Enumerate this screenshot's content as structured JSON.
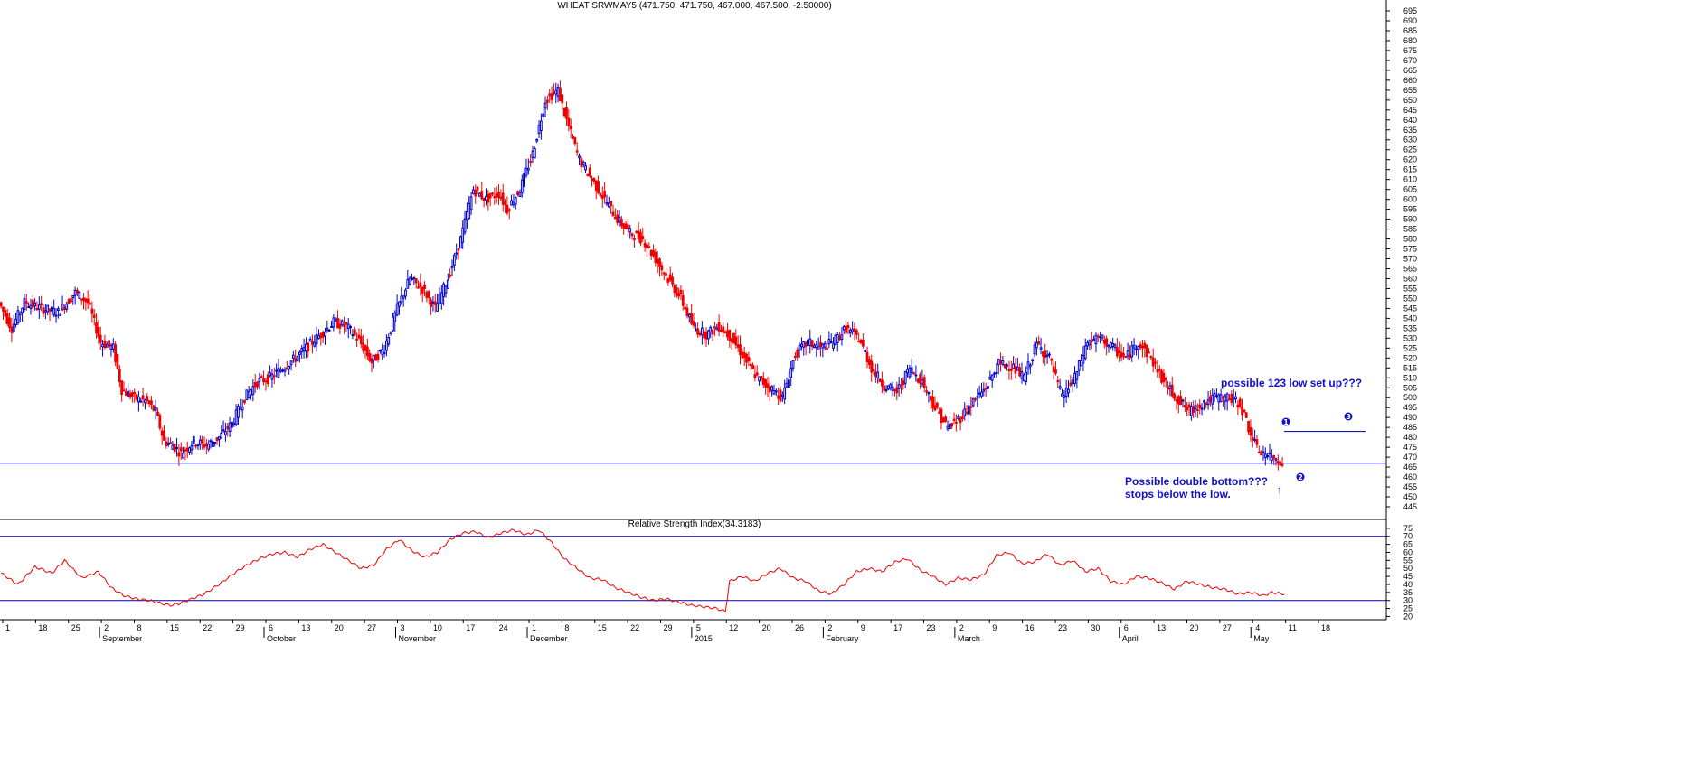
{
  "price_title": "WHEAT SRWMAY5 (471.750, 471.750, 467.000, 467.500, -2.50000)",
  "rsi_title": "Relative Strength Index(34.3183)",
  "annotations": {
    "setup": "possible 123 low set up???",
    "double_bottom": "Possible double bottom???",
    "stops": "stops below the low.",
    "pt1": "1",
    "pt2": "2",
    "pt3": "3",
    "arrow": "↑"
  },
  "colors": {
    "up_candle": "#0000cc",
    "down_candle": "#ee0000",
    "rsi_line": "#ee0000",
    "levels": "#0000aa",
    "annotation": "#1010cc"
  },
  "chart_data": [
    {
      "type": "candlestick",
      "title": "WHEAT SRWMAY5 (471.750, 471.750, 467.000, 467.500, -2.50000)",
      "ylim": [
        440,
        695
      ],
      "y_ticks": [
        445,
        450,
        455,
        460,
        465,
        470,
        475,
        480,
        485,
        490,
        495,
        500,
        505,
        510,
        515,
        520,
        525,
        530,
        535,
        540,
        545,
        550,
        555,
        560,
        565,
        570,
        575,
        580,
        585,
        590,
        595,
        600,
        605,
        610,
        615,
        620,
        625,
        630,
        635,
        640,
        645,
        650,
        655,
        660,
        665,
        670,
        675,
        680,
        685,
        690,
        695
      ],
      "support_line": 467,
      "resistance_line_123": 483,
      "series": [
        {
          "name": "price",
          "kp": [
            [
              0,
              548
            ],
            [
              6,
              535
            ],
            [
              12,
              548
            ],
            [
              20,
              545
            ],
            [
              28,
              543
            ],
            [
              36,
              553
            ],
            [
              42,
              548
            ],
            [
              48,
              528
            ],
            [
              54,
              525
            ],
            [
              58,
              504
            ],
            [
              64,
              500
            ],
            [
              70,
              498
            ],
            [
              74,
              493
            ],
            [
              78,
              478
            ],
            [
              82,
              476
            ],
            [
              86,
              472
            ],
            [
              92,
              478
            ],
            [
              98,
              476
            ],
            [
              104,
              480
            ],
            [
              110,
              487
            ],
            [
              116,
              500
            ],
            [
              122,
              508
            ],
            [
              128,
              510
            ],
            [
              134,
              515
            ],
            [
              140,
              520
            ],
            [
              146,
              526
            ],
            [
              152,
              532
            ],
            [
              158,
              538
            ],
            [
              164,
              536
            ],
            [
              170,
              529
            ],
            [
              176,
              518
            ],
            [
              182,
              525
            ],
            [
              188,
              545
            ],
            [
              194,
              560
            ],
            [
              200,
              555
            ],
            [
              206,
              545
            ],
            [
              212,
              560
            ],
            [
              218,
              580
            ],
            [
              224,
              605
            ],
            [
              230,
              600
            ],
            [
              236,
              603
            ],
            [
              240,
              595
            ],
            [
              246,
              605
            ],
            [
              252,
              623
            ],
            [
              258,
              650
            ],
            [
              264,
              655
            ],
            [
              268,
              640
            ],
            [
              274,
              620
            ],
            [
              280,
              610
            ],
            [
              286,
              600
            ],
            [
              292,
              590
            ],
            [
              298,
              583
            ],
            [
              304,
              580
            ],
            [
              310,
              570
            ],
            [
              316,
              560
            ],
            [
              322,
              550
            ],
            [
              328,
              535
            ],
            [
              334,
              532
            ],
            [
              340,
              536
            ],
            [
              346,
              530
            ],
            [
              352,
              520
            ],
            [
              358,
              510
            ],
            [
              364,
              505
            ],
            [
              370,
              500
            ],
            [
              376,
              522
            ],
            [
              382,
              528
            ],
            [
              388,
              525
            ],
            [
              394,
              528
            ],
            [
              400,
              535
            ],
            [
              406,
              530
            ],
            [
              412,
              515
            ],
            [
              418,
              506
            ],
            [
              424,
              503
            ],
            [
              430,
              515
            ],
            [
              436,
              508
            ],
            [
              442,
              495
            ],
            [
              448,
              485
            ],
            [
              454,
              490
            ],
            [
              460,
              498
            ],
            [
              466,
              505
            ],
            [
              472,
              517
            ],
            [
              478,
              516
            ],
            [
              484,
              510
            ],
            [
              490,
              527
            ],
            [
              496,
              520
            ],
            [
              502,
              500
            ],
            [
              508,
              510
            ],
            [
              514,
              528
            ],
            [
              520,
              530
            ],
            [
              526,
              525
            ],
            [
              532,
              520
            ],
            [
              538,
              528
            ],
            [
              544,
              520
            ],
            [
              550,
              508
            ],
            [
              556,
              500
            ],
            [
              562,
              493
            ],
            [
              568,
              497
            ],
            [
              574,
              500
            ],
            [
              580,
              500
            ],
            [
              586,
              497
            ],
            [
              590,
              485
            ],
            [
              594,
              474
            ],
            [
              600,
              470
            ],
            [
              606,
              468
            ]
          ]
        }
      ]
    },
    {
      "type": "line",
      "title": "Relative Strength Index(34.3183)",
      "ylim": [
        18,
        80
      ],
      "y_ticks": [
        20,
        25,
        30,
        35,
        40,
        45,
        50,
        55,
        60,
        65,
        70,
        75
      ],
      "levels": [
        70,
        30
      ],
      "series": [
        {
          "name": "RSI",
          "kp": [
            [
              0,
              47
            ],
            [
              8,
              40
            ],
            [
              16,
              51
            ],
            [
              24,
              47
            ],
            [
              30,
              55
            ],
            [
              38,
              44
            ],
            [
              46,
              48
            ],
            [
              52,
              38
            ],
            [
              58,
              33
            ],
            [
              64,
              31
            ],
            [
              70,
              30
            ],
            [
              76,
              28
            ],
            [
              80,
              27
            ],
            [
              84,
              28
            ],
            [
              90,
              31
            ],
            [
              96,
              34
            ],
            [
              104,
              41
            ],
            [
              110,
              47
            ],
            [
              116,
              52
            ],
            [
              122,
              56
            ],
            [
              128,
              59
            ],
            [
              134,
              60
            ],
            [
              140,
              57
            ],
            [
              146,
              62
            ],
            [
              152,
              65
            ],
            [
              158,
              60
            ],
            [
              164,
              55
            ],
            [
              170,
              50
            ],
            [
              176,
              52
            ],
            [
              182,
              62
            ],
            [
              188,
              68
            ],
            [
              194,
              61
            ],
            [
              200,
              57
            ],
            [
              206,
              60
            ],
            [
              212,
              68
            ],
            [
              218,
              72
            ],
            [
              224,
              73
            ],
            [
              230,
              69
            ],
            [
              236,
              72
            ],
            [
              242,
              74
            ],
            [
              248,
              71
            ],
            [
              254,
              74
            ],
            [
              260,
              66
            ],
            [
              266,
              56
            ],
            [
              272,
              50
            ],
            [
              278,
              44
            ],
            [
              284,
              43
            ],
            [
              290,
              38
            ],
            [
              296,
              35
            ],
            [
              302,
              32
            ],
            [
              308,
              30
            ],
            [
              314,
              31
            ],
            [
              320,
              29
            ],
            [
              326,
              27
            ],
            [
              332,
              26
            ],
            [
              338,
              25
            ],
            [
              342,
              23
            ],
            [
              344,
              42
            ],
            [
              350,
              45
            ],
            [
              356,
              42
            ],
            [
              362,
              47
            ],
            [
              368,
              50
            ],
            [
              374,
              44
            ],
            [
              380,
              42
            ],
            [
              386,
              36
            ],
            [
              392,
              34
            ],
            [
              398,
              40
            ],
            [
              404,
              48
            ],
            [
              410,
              50
            ],
            [
              416,
              48
            ],
            [
              422,
              54
            ],
            [
              428,
              56
            ],
            [
              434,
              49
            ],
            [
              440,
              45
            ],
            [
              446,
              40
            ],
            [
              452,
              44
            ],
            [
              458,
              43
            ],
            [
              464,
              46
            ],
            [
              470,
              58
            ],
            [
              476,
              60
            ],
            [
              482,
              53
            ],
            [
              488,
              54
            ],
            [
              494,
              59
            ],
            [
              500,
              52
            ],
            [
              506,
              55
            ],
            [
              512,
              48
            ],
            [
              518,
              50
            ],
            [
              524,
              42
            ],
            [
              530,
              40
            ],
            [
              536,
              45
            ],
            [
              542,
              44
            ],
            [
              548,
              41
            ],
            [
              554,
              37
            ],
            [
              560,
              42
            ],
            [
              566,
              40
            ],
            [
              572,
              38
            ],
            [
              578,
              37
            ],
            [
              584,
              34
            ],
            [
              590,
              35
            ],
            [
              596,
              33
            ],
            [
              600,
              35
            ],
            [
              606,
              34
            ]
          ]
        }
      ]
    },
    {
      "type": "axis",
      "x_tick_labels": [
        "1",
        "18",
        "25",
        "2",
        "8",
        "15",
        "22",
        "29",
        "6",
        "13",
        "20",
        "27",
        "3",
        "10",
        "17",
        "24",
        "1",
        "8",
        "15",
        "22",
        "29",
        "5",
        "12",
        "20",
        "26",
        "2",
        "9",
        "17",
        "23",
        "2",
        "9",
        "16",
        "23",
        "30",
        "6",
        "13",
        "20",
        "27",
        "4",
        "11",
        "18"
      ],
      "month_labels": [
        "September",
        "October",
        "November",
        "December",
        "2015",
        "February",
        "March",
        "April",
        "May"
      ]
    }
  ]
}
